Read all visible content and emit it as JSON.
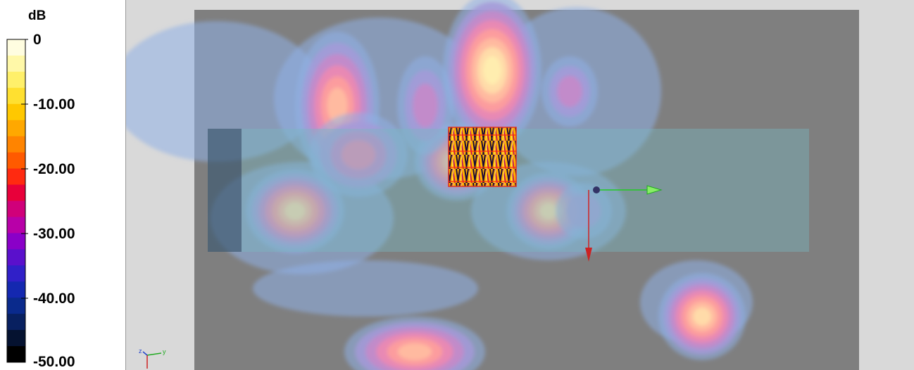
{
  "colorbar": {
    "unit": "dB",
    "ticks": [
      "0",
      "-10.00",
      "-20.00",
      "-30.00",
      "-40.00",
      "-50.00"
    ],
    "colors": [
      "#fffde0",
      "#fff8a8",
      "#fff06a",
      "#ffe030",
      "#ffc800",
      "#ffa800",
      "#ff8400",
      "#ff5a00",
      "#ff2a10",
      "#e8003a",
      "#d0007a",
      "#b800a8",
      "#8a00c8",
      "#5a10cc",
      "#3020c8",
      "#1428b0",
      "#0a2a8c",
      "#082060",
      "#051230",
      "#000000"
    ]
  },
  "viewport": {
    "background": "#d9d9d9",
    "plane_color": "#7f7f7f",
    "board_color": "#6f9292"
  },
  "axes_widget": {
    "y_label": "y",
    "z_label": "z"
  }
}
